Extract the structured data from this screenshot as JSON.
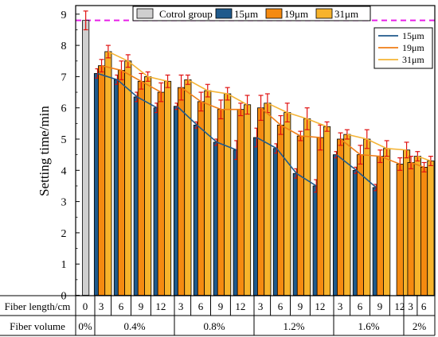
{
  "chart_data": {
    "type": "bar",
    "ylabel": "Setting time/min",
    "ylim": [
      0,
      9
    ],
    "yticks": [
      0,
      1,
      2,
      3,
      4,
      5,
      6,
      7,
      8,
      9
    ],
    "reference_line": 8.8,
    "legend_top": [
      "Cotrol group",
      "15μm",
      "19μm",
      "31μm"
    ],
    "legend_lines": [
      "15μm",
      "19μm",
      "31μm"
    ],
    "colors": {
      "control": "#cfcfcf",
      "15μm": "#1f5a8c",
      "19μm": "#f58a10",
      "31μm": "#f7b32b",
      "line_15": "#1f5a8c",
      "line_19": "#ef7d16",
      "line_31": "#f5b436",
      "reference": "#e81ee8",
      "error": "#e01010"
    },
    "row_labels": [
      "Fiber length/cm",
      "Fiber volume"
    ],
    "control": {
      "length": "0",
      "volume": "0%",
      "value": 8.8,
      "err": 0.3
    },
    "groups": [
      {
        "volume": "0.4%",
        "lengths": [
          "3",
          "6",
          "9",
          "12"
        ],
        "s15": [
          7.1,
          6.9,
          6.35,
          6.0
        ],
        "s19": [
          7.35,
          7.2,
          6.85,
          6.5
        ],
        "s31": [
          7.8,
          7.5,
          7.0,
          6.85
        ],
        "e15": [
          0.15,
          0.15,
          0.15,
          0.15
        ],
        "e19": [
          0.2,
          0.3,
          0.25,
          0.3
        ],
        "e31": [
          0.2,
          0.2,
          0.15,
          0.2
        ]
      },
      {
        "volume": "0.8%",
        "lengths": [
          "3",
          "6",
          "9",
          "12"
        ],
        "s15": [
          6.05,
          5.45,
          4.9,
          4.65
        ],
        "s19": [
          6.65,
          6.2,
          5.95,
          5.95
        ],
        "s31": [
          6.9,
          6.55,
          6.45,
          6.1
        ],
        "e15": [
          0.1,
          0.1,
          0.1,
          0.3
        ],
        "e19": [
          0.4,
          0.3,
          0.3,
          0.2
        ],
        "e31": [
          0.15,
          0.2,
          0.2,
          0.3
        ]
      },
      {
        "volume": "1.2%",
        "lengths": [
          "3",
          "6",
          "9",
          "12"
        ],
        "s15": [
          5.05,
          4.7,
          3.9,
          3.5
        ],
        "s19": [
          6.0,
          5.45,
          5.1,
          5.05
        ],
        "s31": [
          6.15,
          5.85,
          5.65,
          5.4
        ],
        "e15": [
          0.3,
          0.15,
          0.15,
          0.2
        ],
        "e19": [
          0.4,
          0.3,
          0.15,
          0.4
        ],
        "e31": [
          0.3,
          0.3,
          0.35,
          0.15
        ]
      },
      {
        "volume": "1.6%",
        "lengths": [
          "3",
          "6",
          "9",
          "12"
        ],
        "s15": [
          4.5,
          4.0,
          3.45,
          null
        ],
        "s19": [
          5.0,
          4.5,
          4.45,
          4.2
        ],
        "s31": [
          5.15,
          5.0,
          4.7,
          4.65
        ],
        "e15": [
          0.1,
          0.1,
          0.1,
          0
        ],
        "e19": [
          0.2,
          0.3,
          0.2,
          0.2
        ],
        "e31": [
          0.15,
          0.3,
          0.25,
          0.25
        ]
      },
      {
        "volume": "2%",
        "lengths": [
          "3",
          "6"
        ],
        "s15": [
          null,
          null
        ],
        "s19": [
          4.25,
          4.1
        ],
        "s31": [
          4.45,
          4.3
        ],
        "e15": [
          0,
          0
        ],
        "e19": [
          0.2,
          0.15
        ],
        "e31": [
          0.15,
          0.15
        ]
      }
    ]
  }
}
